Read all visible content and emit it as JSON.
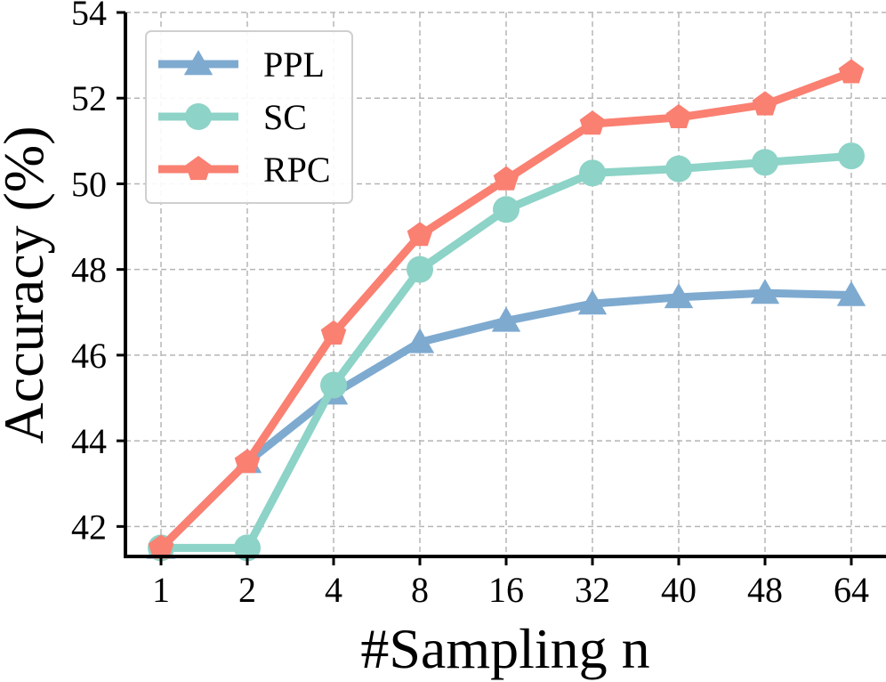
{
  "chart_data": {
    "type": "line",
    "title": "",
    "xlabel": "#Sampling n",
    "ylabel": "Accuracy (%)",
    "categories": [
      "1",
      "2",
      "4",
      "8",
      "16",
      "32",
      "40",
      "48",
      "64"
    ],
    "yticks": [
      42,
      44,
      46,
      48,
      50,
      52,
      54
    ],
    "ylim": [
      41.3,
      54
    ],
    "grid": true,
    "legend_position": "top-left",
    "series": [
      {
        "name": "PPL",
        "marker": "triangle",
        "color": "#7eaad0",
        "values": [
          41.5,
          43.5,
          45.1,
          46.3,
          46.8,
          47.2,
          47.35,
          47.45,
          47.4
        ]
      },
      {
        "name": "SC",
        "marker": "circle",
        "color": "#8dd3c7",
        "values": [
          41.5,
          41.5,
          45.3,
          48.0,
          49.4,
          50.25,
          50.35,
          50.5,
          50.65
        ]
      },
      {
        "name": "RPC",
        "marker": "pentagon",
        "color": "#fa8072",
        "values": [
          41.5,
          43.5,
          46.5,
          48.8,
          50.1,
          51.4,
          51.55,
          51.85,
          52.6
        ]
      }
    ]
  }
}
